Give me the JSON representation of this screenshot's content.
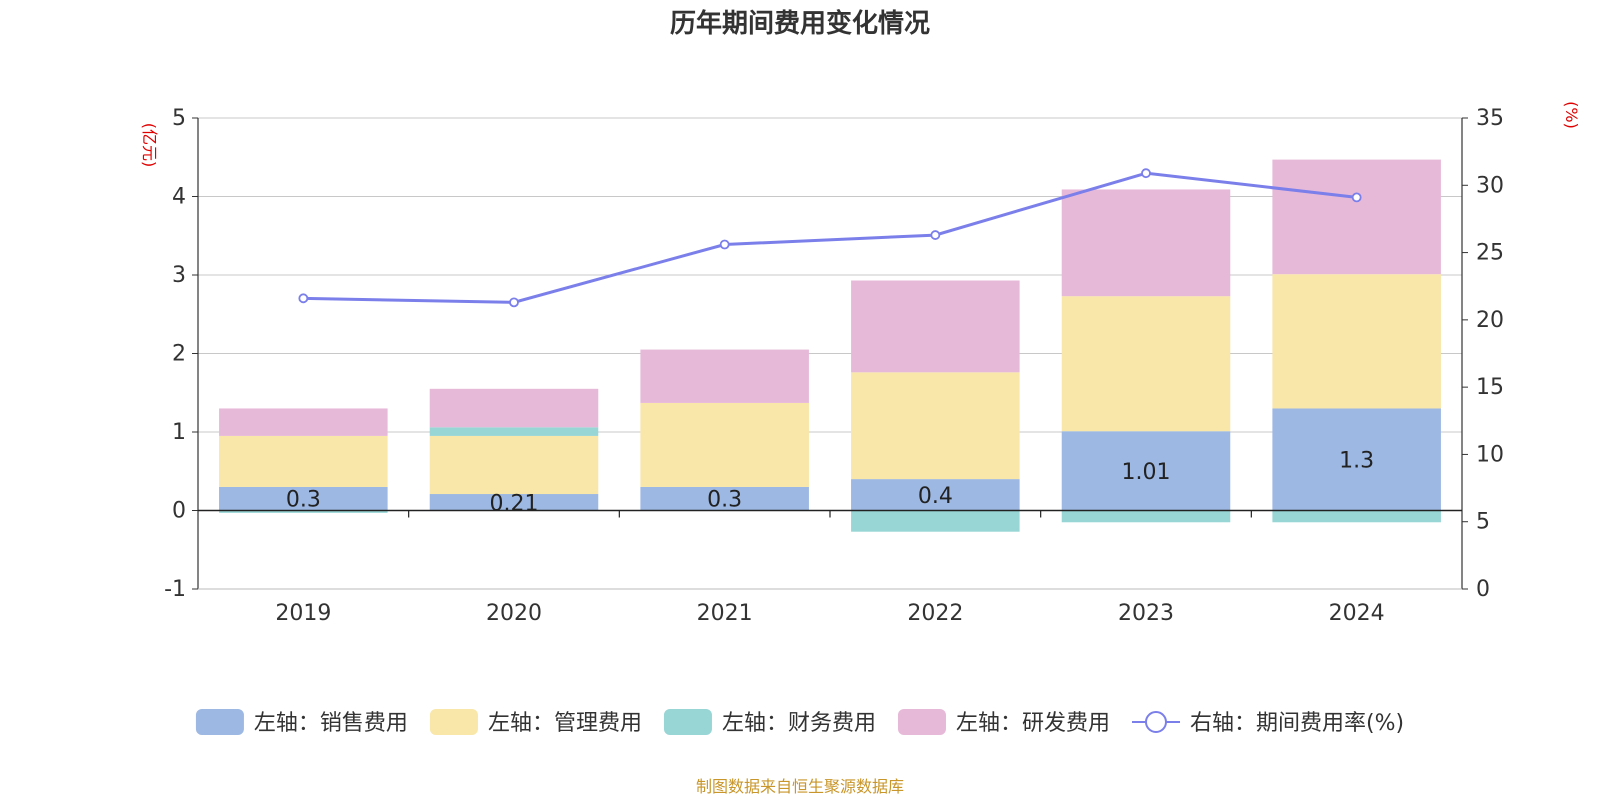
{
  "chart_data": {
    "type": "bar",
    "title": "历年期间费用变化情况",
    "categories": [
      "2019",
      "2020",
      "2021",
      "2022",
      "2023",
      "2024"
    ],
    "y_left": {
      "unit": "(亿元)",
      "ylim": [
        -1,
        5
      ],
      "ticks": [
        -1,
        0,
        1,
        2,
        3,
        4,
        5
      ]
    },
    "y_right": {
      "unit": "(%)",
      "ylim": [
        0,
        35
      ],
      "ticks": [
        0,
        5,
        10,
        15,
        20,
        25,
        30,
        35
      ]
    },
    "series": [
      {
        "name": "左轴：销售费用",
        "axis": "left",
        "kind": "bar",
        "color": "#9db8e2",
        "values": [
          0.3,
          0.21,
          0.3,
          0.4,
          1.01,
          1.3
        ],
        "labels": [
          "0.3",
          "0.21",
          "0.3",
          "0.4",
          "1.01",
          "1.3"
        ]
      },
      {
        "name": "左轴：管理费用",
        "axis": "left",
        "kind": "bar",
        "color": "#f8e7a8",
        "values": [
          0.65,
          0.74,
          1.07,
          1.36,
          1.72,
          1.71
        ]
      },
      {
        "name": "左轴：财务费用",
        "axis": "left",
        "kind": "bar",
        "color": "#98d5d5",
        "values": [
          -0.03,
          0.11,
          0.0,
          -0.27,
          -0.15,
          -0.15
        ]
      },
      {
        "name": "左轴：研发费用",
        "axis": "left",
        "kind": "bar",
        "color": "#e7b9d9",
        "values": [
          0.35,
          0.49,
          0.68,
          1.17,
          1.36,
          1.46
        ]
      },
      {
        "name": "右轴：期间费用率(%)",
        "axis": "right",
        "kind": "line",
        "color": "#7b7fea",
        "values": [
          21.6,
          21.3,
          25.6,
          26.3,
          30.9,
          29.1
        ]
      }
    ],
    "grid": true,
    "legend": "bottom"
  },
  "source": "制图数据来自恒生聚源数据库"
}
